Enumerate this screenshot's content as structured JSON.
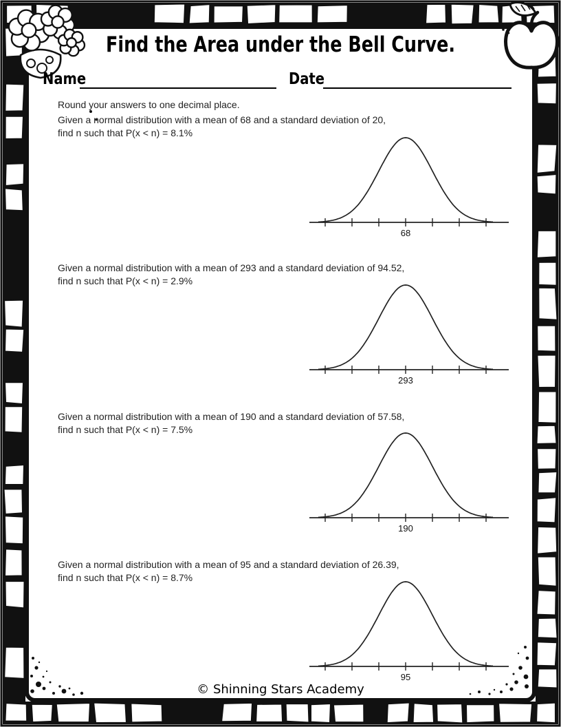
{
  "header": {
    "title": "Find the Area under the Bell Curve.",
    "name_label": "Name",
    "date_label": "Date"
  },
  "instruction": "Round your answers to one decimal place.",
  "problems": [
    {
      "line1": "Given a normal distribution with a mean of 68 and a standard deviation of 20,",
      "line2": "find n such that P(x < n) = 8.1%",
      "mean": "68",
      "std_dev": "20",
      "probability": "8.1%"
    },
    {
      "line1": "Given a normal distribution with a mean of 293 and a standard deviation of 94.52,",
      "line2": "find n such that P(x < n) = 2.9%",
      "mean": "293",
      "std_dev": "94.52",
      "probability": "2.9%"
    },
    {
      "line1": "Given a normal distribution with a mean of 190 and a standard deviation of 57.58,",
      "line2": "find n such that P(x < n) = 7.5%",
      "mean": "190",
      "std_dev": "57.58",
      "probability": "7.5%"
    },
    {
      "line1": "Given a normal distribution with a mean of 95 and a standard deviation of 26.39,",
      "line2": "find n such that P(x < n) = 8.7%",
      "mean": "95",
      "std_dev": "26.39",
      "probability": "8.7%"
    }
  ],
  "footer": "© Shinning Stars Academy",
  "decorations": {
    "border_style": "hand-drawn black and white tile frame",
    "top_left": "flowers-in-basket clipart",
    "top_right": "apple-with-leaf clipart",
    "bottom_corners": "scattered ink dots"
  },
  "colors": {
    "ink": "#111111",
    "text": "#222222",
    "paper": "#ffffff"
  }
}
